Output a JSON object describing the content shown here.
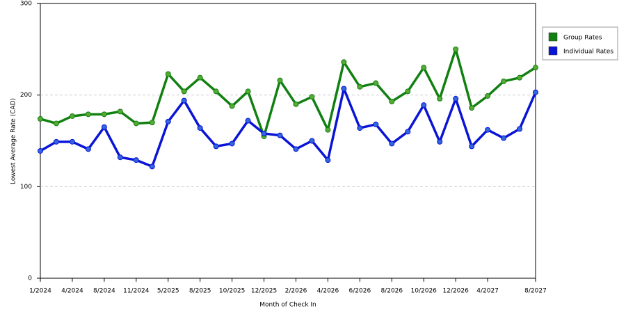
{
  "chart_data": {
    "type": "line",
    "x_label": "Month of Check In",
    "y_label": "Lowest Average Rate (CAD)",
    "categories": [
      "1/2024",
      null,
      "4/2024",
      null,
      "8/2024",
      null,
      "11/2024",
      null,
      "5/2025",
      null,
      "8/2025",
      null,
      "10/2025",
      null,
      "12/2025",
      null,
      "2/2026",
      null,
      "4/2026",
      null,
      "6/2026",
      null,
      "8/2026",
      null,
      "10/2026",
      null,
      "12/2026",
      null,
      "4/2027",
      null,
      null,
      "8/2027"
    ],
    "series": [
      {
        "name": "Group Rates",
        "color": "#118011",
        "marker_color": "#55aa33",
        "values": [
          174,
          169,
          177,
          179,
          179,
          182,
          169,
          170,
          223,
          204,
          219,
          204,
          188,
          204,
          155,
          216,
          190,
          198,
          162,
          236,
          209,
          213,
          193,
          204,
          230,
          196,
          250,
          186,
          199,
          215,
          219,
          230
        ]
      },
      {
        "name": "Individual Rates",
        "color": "#0a14d6",
        "marker_color": "#3366dd",
        "values": [
          139,
          149,
          149,
          141,
          165,
          132,
          129,
          122,
          171,
          194,
          164,
          144,
          147,
          172,
          158,
          156,
          141,
          150,
          129,
          207,
          164,
          168,
          147,
          160,
          189,
          149,
          196,
          144,
          162,
          153,
          163,
          203
        ]
      }
    ],
    "ylim": [
      0,
      300
    ],
    "yticks": [
      0,
      100,
      200,
      300
    ],
    "grid": true,
    "legend": "right"
  }
}
